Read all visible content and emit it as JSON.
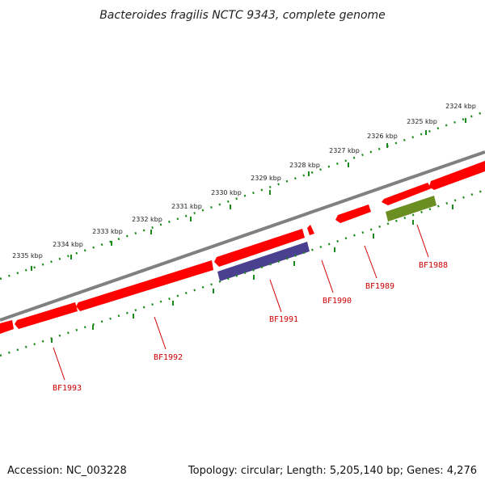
{
  "title": "Bacteroides fragilis NCTC 9343, complete genome",
  "accession": "Accession: NC_003228",
  "summary": "Topology: circular; Length: 5,205,140 bp; Genes: 4,276",
  "scale_labels": [
    "2324 kbp",
    "2325 kbp",
    "2326 kbp",
    "2327 kbp",
    "2328 kbp",
    "2329 kbp",
    "2330 kbp",
    "2331 kbp",
    "2332 kbp",
    "2333 kbp",
    "2334 kbp",
    "2335 kbp"
  ],
  "genes": [
    {
      "label": "BF1988",
      "color": "#6b8e23"
    },
    {
      "label": "BF1989",
      "color": "#ff0000"
    },
    {
      "label": "BF1990",
      "color": "#ff0000"
    },
    {
      "label": "BF1991",
      "color": "#4b3f8f"
    },
    {
      "label": "BF1992",
      "color": "#ff0000"
    },
    {
      "label": "BF1993",
      "color": "#ff0000"
    }
  ],
  "colors": {
    "backbone": "#808080",
    "forward_strand": "#ff0000",
    "tick": "#1a8a1a",
    "label_line": "#cc0000"
  }
}
